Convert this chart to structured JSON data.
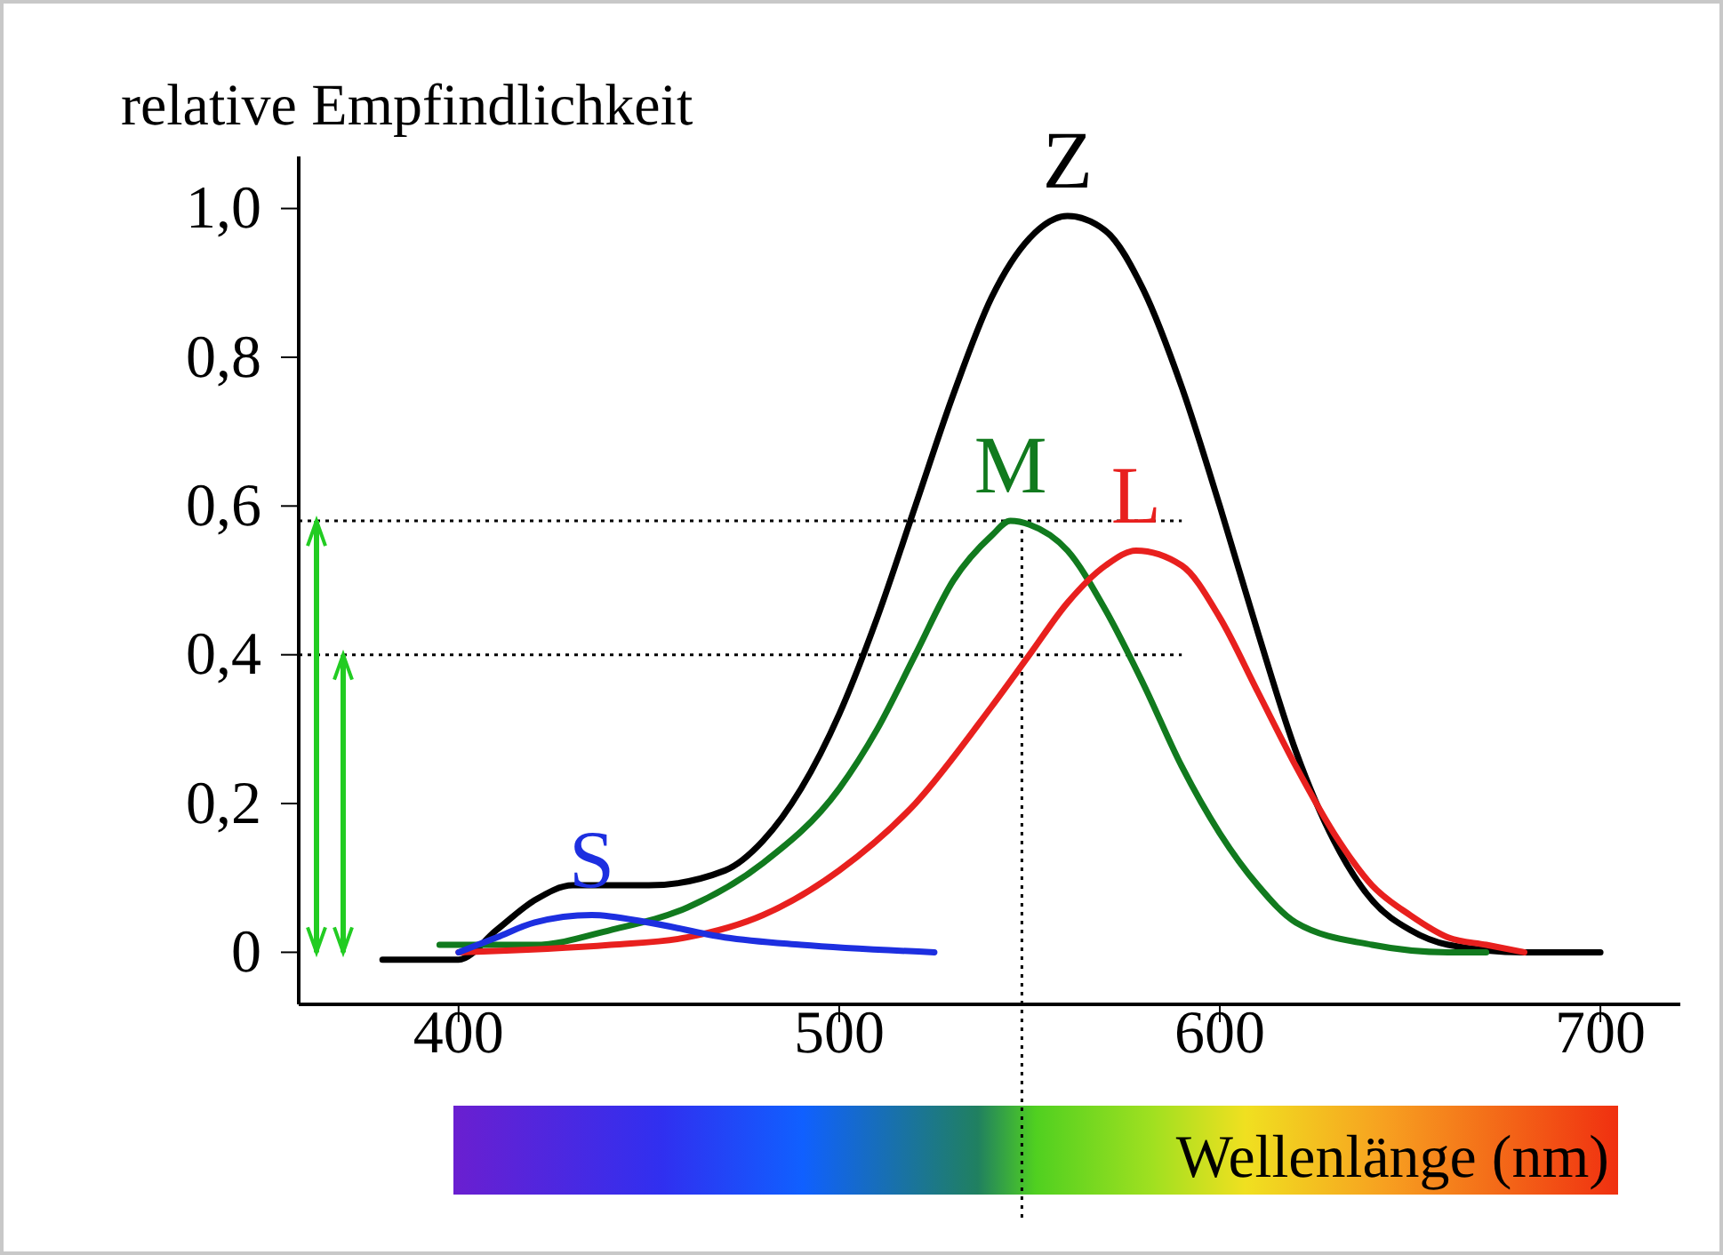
{
  "chart_data": {
    "type": "line",
    "ylabel": "relative Empfindlichkeit",
    "xlabel": "Wellenlänge (nm)",
    "xlim": [
      358,
      721
    ],
    "ylim": [
      -0.07,
      1.07
    ],
    "xticks": [
      400,
      500,
      600,
      700
    ],
    "yticks": [
      0,
      {
        "value": 0.2,
        "label": "0,2"
      },
      {
        "value": 0.4,
        "label": "0,4"
      },
      {
        "value": 0.6,
        "label": "0,6"
      },
      {
        "value": 0.8,
        "label": "0,8"
      },
      {
        "value": 1,
        "label": "1,0"
      }
    ],
    "grid": false,
    "marker": "none",
    "line_style": "solid",
    "series": [
      {
        "name": "Z",
        "color": "#000000",
        "x": [
          380,
          400,
          410,
          420,
          430,
          450,
          470,
          480,
          490,
          500,
          510,
          520,
          530,
          540,
          550,
          560,
          570,
          580,
          590,
          600,
          610,
          620,
          630,
          640,
          650,
          660,
          680,
          700
        ],
        "values": [
          -0.01,
          -0.01,
          0.03,
          0.07,
          0.09,
          0.09,
          0.11,
          0.15,
          0.22,
          0.32,
          0.45,
          0.6,
          0.75,
          0.88,
          0.96,
          0.99,
          0.97,
          0.89,
          0.76,
          0.6,
          0.43,
          0.27,
          0.15,
          0.07,
          0.03,
          0.01,
          0,
          0
        ]
      },
      {
        "name": "M",
        "color": "#117a1e",
        "x": [
          395,
          420,
          440,
          460,
          480,
          500,
          510,
          520,
          530,
          540,
          545,
          550,
          560,
          570,
          580,
          590,
          600,
          610,
          620,
          640,
          660,
          670
        ],
        "values": [
          0.01,
          0.01,
          0.03,
          0.06,
          0.12,
          0.22,
          0.3,
          0.4,
          0.5,
          0.56,
          0.58,
          0.575,
          0.54,
          0.46,
          0.36,
          0.25,
          0.16,
          0.09,
          0.04,
          0.01,
          0,
          0
        ]
      },
      {
        "name": "L",
        "color": "#e8201e",
        "x": [
          400,
          440,
          460,
          480,
          500,
          520,
          540,
          550,
          560,
          570,
          578,
          590,
          600,
          610,
          620,
          630,
          640,
          650,
          660,
          670,
          680
        ],
        "values": [
          0,
          0.01,
          0.02,
          0.05,
          0.11,
          0.2,
          0.33,
          0.4,
          0.47,
          0.52,
          0.54,
          0.52,
          0.45,
          0.35,
          0.25,
          0.16,
          0.09,
          0.05,
          0.02,
          0.01,
          0
        ]
      },
      {
        "name": "S",
        "color": "#1d2fe0",
        "x": [
          400,
          410,
          420,
          435,
          450,
          470,
          490,
          525
        ],
        "values": [
          0,
          0.02,
          0.04,
          0.05,
          0.04,
          0.02,
          0.01,
          0
        ]
      }
    ],
    "ref_lines": [
      {
        "axis": "y",
        "value": 0.58,
        "color": "#000000",
        "line_style": "dotted"
      },
      {
        "axis": "y",
        "value": 0.4,
        "color": "#000000",
        "line_style": "dotted"
      },
      {
        "axis": "x",
        "value": 548,
        "color": "#000000",
        "line_style": "dotted"
      }
    ]
  }
}
